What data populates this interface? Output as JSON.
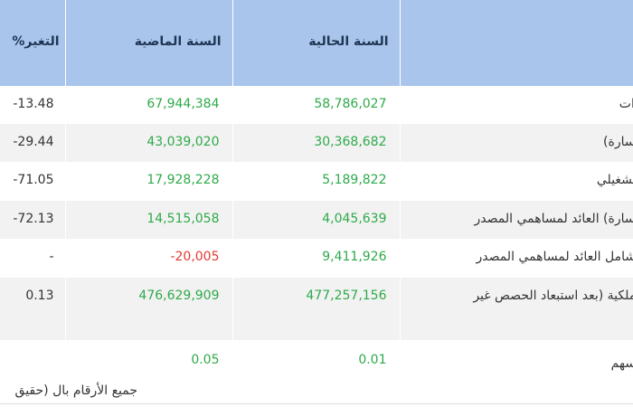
{
  "table": {
    "headers": {
      "change": "التغير%",
      "previous_year": "السنة الماضية",
      "current_year": "السنة الحالية",
      "label": ""
    },
    "rows": [
      {
        "label": "ادات",
        "current": "58,786,027",
        "previous": "67,944,384",
        "change": "-13.48",
        "previous_negative": false
      },
      {
        "label": "خسارة)",
        "current": "30,368,682",
        "previous": "43,039,020",
        "change": "-29.44",
        "previous_negative": false
      },
      {
        "label": "التشغيلي",
        "current": "5,189,822",
        "previous": "17,928,228",
        "change": "-71.05",
        "previous_negative": false
      },
      {
        "label": "خسارة) العائد لمساهمي المصدر",
        "current": "4,045,639",
        "previous": "14,515,058",
        "change": "-72.13",
        "previous_negative": false
      },
      {
        "label": "الشامل العائد لمساهمي المصدر",
        "current": "9,411,926",
        "previous": "-20,005",
        "change": "-",
        "previous_negative": true
      },
      {
        "label": "الملكية (بعد استبعاد الحصص غير",
        "current": "477,257,156",
        "previous": "476,629,909",
        "change": "0.13",
        "previous_negative": false
      },
      {
        "label": "السهم",
        "current": "0.01",
        "previous": "0.05",
        "change": "",
        "previous_negative": false
      }
    ]
  },
  "footnote": "جميع الأرقام بال (حقيق",
  "colors": {
    "header_bg": "#aac5ec",
    "positive": "#2eaa4a",
    "negative": "#e53935",
    "stripe": "#f2f2f2"
  }
}
